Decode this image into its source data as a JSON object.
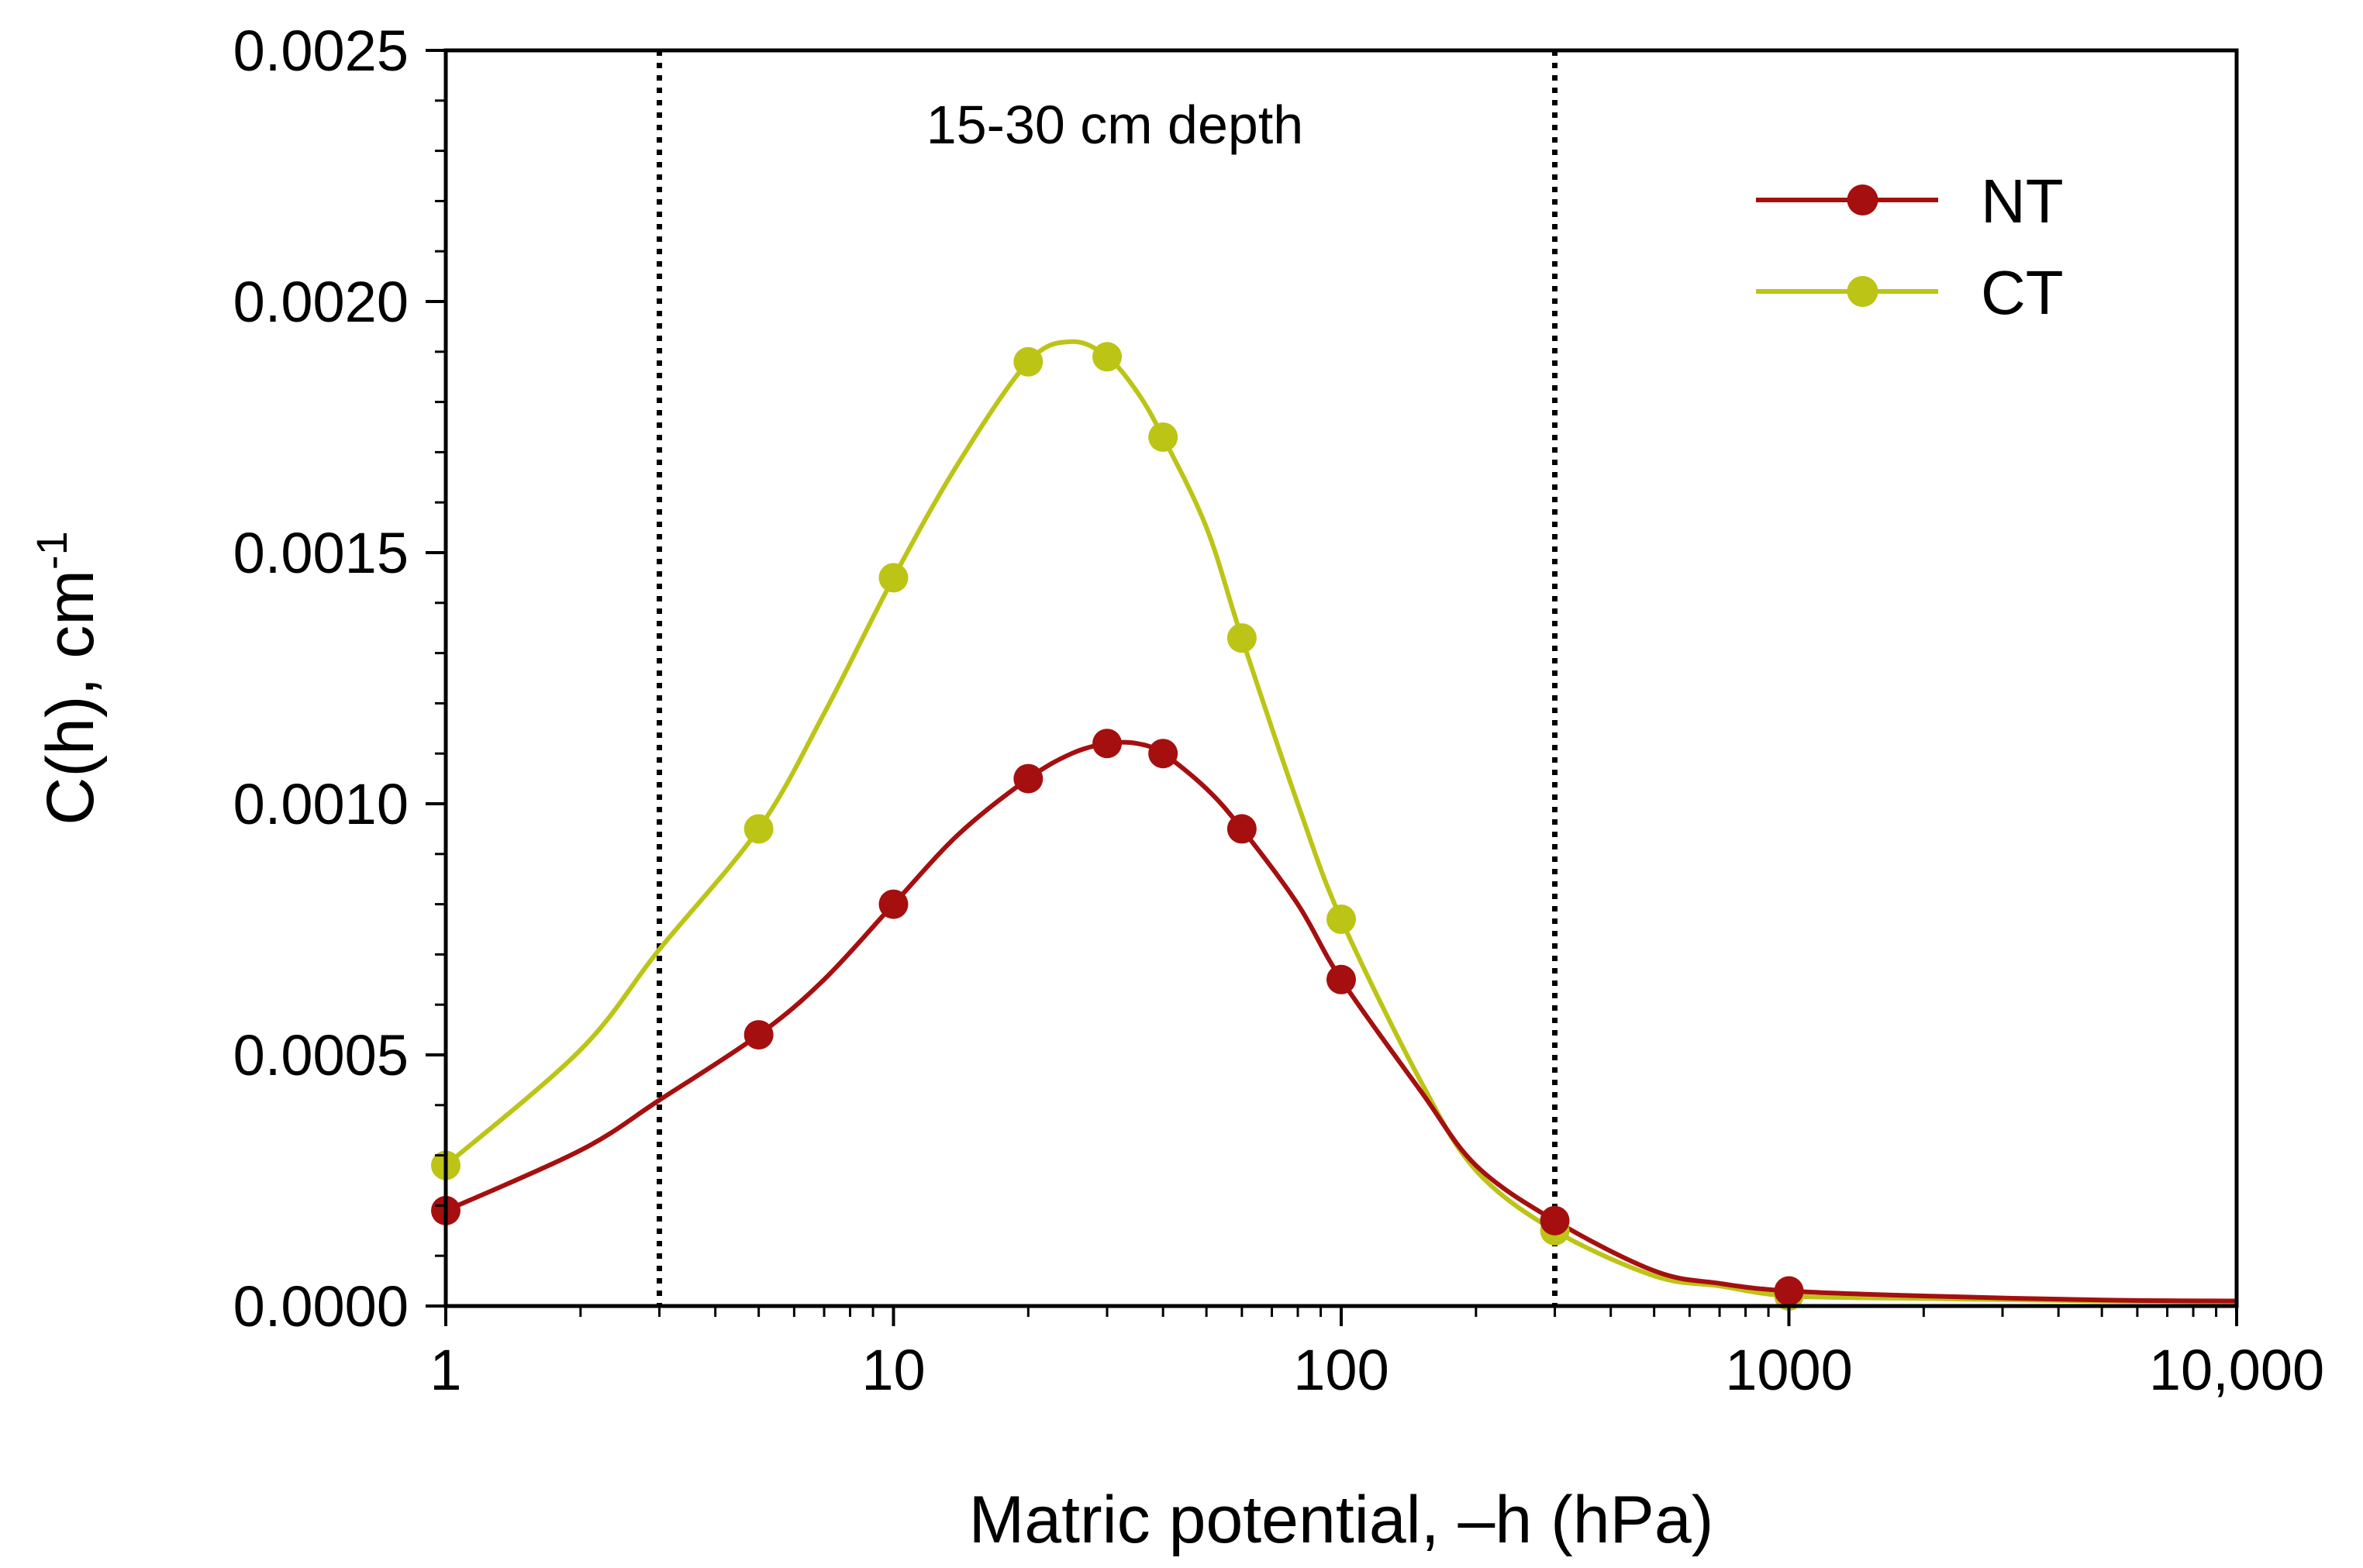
{
  "chart_data": {
    "type": "line",
    "title": "",
    "annotation": "15-30 cm depth",
    "xlabel": "Matric potential, –h (hPa)",
    "ylabel": "C(h), cm",
    "ylabel_superscript": "-1",
    "x_scale": "log",
    "xlim": [
      1,
      10000
    ],
    "ylim": [
      0,
      0.0025
    ],
    "x_ticks": [
      {
        "value": 1,
        "label": "1"
      },
      {
        "value": 10,
        "label": "10"
      },
      {
        "value": 100,
        "label": "100"
      },
      {
        "value": 1000,
        "label": "1000"
      },
      {
        "value": 10000,
        "label": "10,000"
      }
    ],
    "y_ticks": [
      {
        "value": 0,
        "label": "0.0000"
      },
      {
        "value": 0.0005,
        "label": "0.0005"
      },
      {
        "value": 0.001,
        "label": "0.0010"
      },
      {
        "value": 0.0015,
        "label": "0.0015"
      },
      {
        "value": 0.002,
        "label": "0.0020"
      },
      {
        "value": 0.0025,
        "label": "0.0025"
      }
    ],
    "vertical_reference_lines": [
      3,
      300
    ],
    "grid": false,
    "legend_position": "top-right",
    "series": [
      {
        "name": "NT",
        "color": "#a50f0f",
        "points": [
          [
            1,
            0.00019
          ],
          [
            5,
            0.00054
          ],
          [
            10,
            0.0008
          ],
          [
            20,
            0.00105
          ],
          [
            30,
            0.00112
          ],
          [
            40,
            0.0011
          ],
          [
            60,
            0.00095
          ],
          [
            100,
            0.00065
          ],
          [
            300,
            0.00017
          ],
          [
            1000,
            3e-05
          ]
        ],
        "curve": [
          [
            1,
            0.00019
          ],
          [
            2,
            0.00031
          ],
          [
            3,
            0.00041
          ],
          [
            5,
            0.00054
          ],
          [
            7,
            0.00065
          ],
          [
            10,
            0.0008
          ],
          [
            14,
            0.00094
          ],
          [
            20,
            0.00105
          ],
          [
            25,
            0.0011
          ],
          [
            30,
            0.00112
          ],
          [
            35,
            0.00112
          ],
          [
            40,
            0.0011
          ],
          [
            50,
            0.00103
          ],
          [
            60,
            0.00095
          ],
          [
            80,
            0.0008
          ],
          [
            100,
            0.00065
          ],
          [
            150,
            0.00043
          ],
          [
            200,
            0.00028
          ],
          [
            300,
            0.00017
          ],
          [
            500,
            7e-05
          ],
          [
            700,
            4.5e-05
          ],
          [
            1000,
            3e-05
          ],
          [
            2000,
            2e-05
          ],
          [
            5000,
            1.2e-05
          ],
          [
            10000,
            1e-05
          ]
        ]
      },
      {
        "name": "CT",
        "color": "#bcc416",
        "points": [
          [
            1,
            0.00028
          ],
          [
            5,
            0.00095
          ],
          [
            10,
            0.00145
          ],
          [
            20,
            0.00188
          ],
          [
            30,
            0.00189
          ],
          [
            40,
            0.00173
          ],
          [
            60,
            0.00133
          ],
          [
            100,
            0.00077
          ],
          [
            300,
            0.00015
          ],
          [
            1000,
            2e-05
          ]
        ],
        "curve": [
          [
            1,
            0.00028
          ],
          [
            2,
            0.00051
          ],
          [
            3,
            0.00071
          ],
          [
            5,
            0.00095
          ],
          [
            7,
            0.00118
          ],
          [
            10,
            0.00145
          ],
          [
            14,
            0.00168
          ],
          [
            20,
            0.00188
          ],
          [
            25,
            0.00192
          ],
          [
            30,
            0.00189
          ],
          [
            35,
            0.00182
          ],
          [
            40,
            0.00173
          ],
          [
            50,
            0.00155
          ],
          [
            60,
            0.00133
          ],
          [
            80,
            0.001
          ],
          [
            100,
            0.00077
          ],
          [
            150,
            0.00045
          ],
          [
            200,
            0.00027
          ],
          [
            300,
            0.00015
          ],
          [
            500,
            6e-05
          ],
          [
            700,
            4e-05
          ],
          [
            1000,
            2e-05
          ],
          [
            2000,
            1.5e-05
          ],
          [
            5000,
            1e-05
          ],
          [
            10000,
            8e-06
          ]
        ]
      }
    ]
  }
}
